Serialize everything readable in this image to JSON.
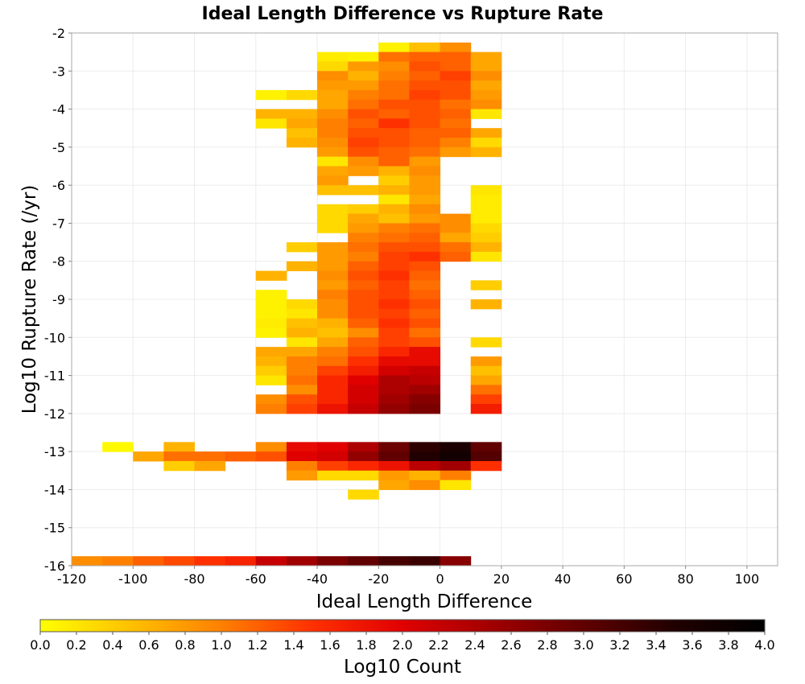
{
  "chart_data": {
    "type": "heatmap",
    "title": "Ideal Length Difference vs Rupture Rate",
    "xlabel": "Ideal Length Difference",
    "ylabel": "Log10 Rupture Rate (/yr)",
    "xlim": [
      -120,
      110
    ],
    "ylim": [
      -16,
      -2
    ],
    "x_ticks": [
      -120,
      -100,
      -80,
      -60,
      -40,
      -20,
      0,
      20,
      40,
      60,
      80,
      100
    ],
    "y_ticks": [
      -2,
      -3,
      -4,
      -5,
      -6,
      -7,
      -8,
      -9,
      -10,
      -11,
      -12,
      -13,
      -14,
      -15,
      -16
    ],
    "grid": true,
    "x_bin_width": 10,
    "y_bin_height": 0.25,
    "colorbar": {
      "label": "Log10 Count",
      "range": [
        0.0,
        4.0
      ],
      "ticks": [
        "0.0",
        "0.2",
        "0.4",
        "0.6",
        "0.8",
        "1.0",
        "1.2",
        "1.4",
        "1.6",
        "1.8",
        "2.0",
        "2.2",
        "2.4",
        "2.6",
        "2.8",
        "3.0",
        "3.2",
        "3.4",
        "3.6",
        "3.8",
        "4.0"
      ],
      "colors": [
        "#ffff00",
        "#ffc000",
        "#ff8000",
        "#ff3000",
        "#e00000",
        "#a00000",
        "#600000",
        "#200000",
        "#000000"
      ]
    },
    "cells": [
      [
        -120,
        -16,
        0.9
      ],
      [
        -110,
        -16,
        1.0
      ],
      [
        -100,
        -16,
        1.2
      ],
      [
        -90,
        -16,
        1.35
      ],
      [
        -80,
        -16,
        1.5
      ],
      [
        -70,
        -16,
        1.65
      ],
      [
        -60,
        -16,
        2.2
      ],
      [
        -50,
        -16,
        2.5
      ],
      [
        -40,
        -16,
        2.8
      ],
      [
        -30,
        -16,
        3.0
      ],
      [
        -20,
        -16,
        3.2
      ],
      [
        -10,
        -16,
        3.3
      ],
      [
        0,
        -16,
        2.7
      ],
      [
        -110,
        -13,
        0.05
      ],
      [
        -90,
        -13,
        0.6
      ],
      [
        -60,
        -13,
        0.9
      ],
      [
        -50,
        -13,
        1.9
      ],
      [
        -40,
        -13,
        2.0
      ],
      [
        -30,
        -13,
        2.4
      ],
      [
        -20,
        -13,
        2.9
      ],
      [
        -10,
        -13,
        3.4
      ],
      [
        0,
        -13,
        3.6
      ],
      [
        10,
        -13,
        3.0
      ],
      [
        -100,
        -13.25,
        0.7
      ],
      [
        -90,
        -13.25,
        1.1
      ],
      [
        -80,
        -13.25,
        1.1
      ],
      [
        -70,
        -13.25,
        1.2
      ],
      [
        -60,
        -13.25,
        1.3
      ],
      [
        -50,
        -13.25,
        2.0
      ],
      [
        -40,
        -13.25,
        2.1
      ],
      [
        -30,
        -13.25,
        2.6
      ],
      [
        -20,
        -13.25,
        3.0
      ],
      [
        -10,
        -13.25,
        3.5
      ],
      [
        0,
        -13.25,
        3.7
      ],
      [
        10,
        -13.25,
        3.1
      ],
      [
        -90,
        -13.5,
        0.4
      ],
      [
        -80,
        -13.5,
        0.7
      ],
      [
        -50,
        -13.5,
        1.0
      ],
      [
        -40,
        -13.5,
        1.4
      ],
      [
        -30,
        -13.5,
        1.6
      ],
      [
        -20,
        -13.5,
        1.8
      ],
      [
        -10,
        -13.5,
        2.3
      ],
      [
        0,
        -13.5,
        2.5
      ],
      [
        10,
        -13.5,
        1.5
      ],
      [
        -50,
        -13.75,
        0.8
      ],
      [
        -40,
        -13.75,
        0.3
      ],
      [
        -30,
        -13.75,
        0.3
      ],
      [
        -20,
        -13.75,
        0.8
      ],
      [
        -10,
        -13.75,
        0.6
      ],
      [
        0,
        -13.75,
        1.0
      ],
      [
        -20,
        -14,
        0.7
      ],
      [
        -10,
        -14,
        0.9
      ],
      [
        0,
        -14,
        0.2
      ],
      [
        -30,
        -14.25,
        0.3
      ],
      [
        -20,
        -2.5,
        0.1
      ],
      [
        -10,
        -2.5,
        0.5
      ],
      [
        0,
        -2.5,
        0.9
      ],
      [
        -40,
        -2.75,
        0.15
      ],
      [
        -30,
        -2.75,
        0.1
      ],
      [
        -20,
        -2.75,
        1.1
      ],
      [
        -10,
        -2.75,
        1.2
      ],
      [
        0,
        -2.75,
        1.2
      ],
      [
        10,
        -2.75,
        0.7
      ],
      [
        -40,
        -3,
        0.3
      ],
      [
        -30,
        -3,
        0.8
      ],
      [
        -20,
        -3,
        0.9
      ],
      [
        -10,
        -3,
        1.3
      ],
      [
        0,
        -3,
        1.2
      ],
      [
        10,
        -3,
        0.7
      ],
      [
        -40,
        -3.25,
        0.9
      ],
      [
        -30,
        -3.25,
        0.6
      ],
      [
        -20,
        -3.25,
        1.0
      ],
      [
        -10,
        -3.25,
        1.2
      ],
      [
        0,
        -3.25,
        1.4
      ],
      [
        10,
        -3.25,
        0.9
      ],
      [
        -40,
        -3.5,
        0.8
      ],
      [
        -30,
        -3.5,
        0.8
      ],
      [
        -20,
        -3.5,
        1.1
      ],
      [
        -10,
        -3.5,
        1.3
      ],
      [
        0,
        -3.5,
        1.3
      ],
      [
        10,
        -3.5,
        0.7
      ],
      [
        -60,
        -3.75,
        0.1
      ],
      [
        -50,
        -3.75,
        0.3
      ],
      [
        -40,
        -3.75,
        0.7
      ],
      [
        -30,
        -3.75,
        1.0
      ],
      [
        -20,
        -3.75,
        1.1
      ],
      [
        -10,
        -3.75,
        1.4
      ],
      [
        0,
        -3.75,
        1.3
      ],
      [
        10,
        -3.75,
        0.8
      ],
      [
        -40,
        -4,
        0.7
      ],
      [
        -30,
        -4,
        1.1
      ],
      [
        -20,
        -4,
        1.3
      ],
      [
        -10,
        -4,
        1.3
      ],
      [
        0,
        -4,
        1.1
      ],
      [
        10,
        -4,
        0.9
      ],
      [
        -60,
        -4.25,
        0.6
      ],
      [
        -50,
        -4.25,
        0.6
      ],
      [
        -40,
        -4.25,
        0.9
      ],
      [
        -30,
        -4.25,
        1.3
      ],
      [
        -20,
        -4.25,
        1.2
      ],
      [
        -10,
        -4.25,
        1.3
      ],
      [
        0,
        -4.25,
        1.2
      ],
      [
        10,
        -4.25,
        0.2
      ],
      [
        -60,
        -4.5,
        0.2
      ],
      [
        -50,
        -4.5,
        0.7
      ],
      [
        -40,
        -4.5,
        1.0
      ],
      [
        -30,
        -4.5,
        1.2
      ],
      [
        -20,
        -4.5,
        1.5
      ],
      [
        -10,
        -4.5,
        1.3
      ],
      [
        0,
        -4.5,
        1.1
      ],
      [
        -50,
        -4.75,
        0.5
      ],
      [
        -40,
        -4.75,
        1.0
      ],
      [
        -30,
        -4.75,
        1.3
      ],
      [
        -20,
        -4.75,
        1.3
      ],
      [
        -10,
        -4.75,
        1.2
      ],
      [
        0,
        -4.75,
        1.2
      ],
      [
        10,
        -4.75,
        0.7
      ],
      [
        -50,
        -5,
        0.6
      ],
      [
        -40,
        -5,
        0.9
      ],
      [
        -30,
        -5,
        1.4
      ],
      [
        -20,
        -5,
        1.3
      ],
      [
        -10,
        -5,
        1.2
      ],
      [
        0,
        -5,
        1.0
      ],
      [
        10,
        -5,
        0.3
      ],
      [
        -40,
        -5.25,
        0.8
      ],
      [
        -30,
        -5.25,
        1.3
      ],
      [
        -20,
        -5.25,
        1.2
      ],
      [
        -10,
        -5.25,
        1.1
      ],
      [
        0,
        -5.25,
        0.8
      ],
      [
        10,
        -5.25,
        0.6
      ],
      [
        -40,
        -5.5,
        0.2
      ],
      [
        -30,
        -5.5,
        0.9
      ],
      [
        -20,
        -5.5,
        1.2
      ],
      [
        -10,
        -5.5,
        0.8
      ],
      [
        -40,
        -5.75,
        0.7
      ],
      [
        -30,
        -5.75,
        0.8
      ],
      [
        -20,
        -5.75,
        0.6
      ],
      [
        -10,
        -5.75,
        0.9
      ],
      [
        -40,
        -6,
        0.8
      ],
      [
        -20,
        -6,
        0.4
      ],
      [
        -10,
        -6,
        0.8
      ],
      [
        -40,
        -6.25,
        0.5
      ],
      [
        -30,
        -6.25,
        0.5
      ],
      [
        -20,
        -6.25,
        0.6
      ],
      [
        -10,
        -6.25,
        0.8
      ],
      [
        10,
        -6.25,
        0.2
      ],
      [
        -20,
        -6.5,
        0.2
      ],
      [
        -10,
        -6.5,
        0.7
      ],
      [
        10,
        -6.5,
        0.15
      ],
      [
        -40,
        -6.75,
        0.3
      ],
      [
        -30,
        -6.75,
        0.4
      ],
      [
        -20,
        -6.75,
        0.6
      ],
      [
        -10,
        -6.75,
        0.9
      ],
      [
        10,
        -6.75,
        0.15
      ],
      [
        -40,
        -7,
        0.3
      ],
      [
        -30,
        -7,
        0.7
      ],
      [
        -20,
        -7,
        0.5
      ],
      [
        -10,
        -7,
        0.8
      ],
      [
        0,
        -7,
        0.9
      ],
      [
        10,
        -7,
        0.15
      ],
      [
        -40,
        -7.25,
        0.3
      ],
      [
        -30,
        -7.25,
        0.8
      ],
      [
        -20,
        -7.25,
        1.0
      ],
      [
        -10,
        -7.25,
        1.1
      ],
      [
        0,
        -7.25,
        0.9
      ],
      [
        10,
        -7.25,
        0.3
      ],
      [
        -30,
        -7.5,
        1.0
      ],
      [
        -20,
        -7.5,
        1.1
      ],
      [
        -10,
        -7.5,
        1.2
      ],
      [
        0,
        -7.5,
        0.7
      ],
      [
        10,
        -7.5,
        0.4
      ],
      [
        -50,
        -7.75,
        0.4
      ],
      [
        -40,
        -7.75,
        0.8
      ],
      [
        -30,
        -7.75,
        1.1
      ],
      [
        -20,
        -7.75,
        1.3
      ],
      [
        -10,
        -7.75,
        1.3
      ],
      [
        0,
        -7.75,
        1.1
      ],
      [
        10,
        -7.75,
        0.6
      ],
      [
        -40,
        -8,
        0.8
      ],
      [
        -30,
        -8,
        1.0
      ],
      [
        -20,
        -8,
        1.4
      ],
      [
        -10,
        -8,
        1.5
      ],
      [
        0,
        -8,
        1.2
      ],
      [
        10,
        -8,
        0.2
      ],
      [
        -50,
        -8.25,
        0.6
      ],
      [
        -40,
        -8.25,
        0.8
      ],
      [
        -30,
        -8.25,
        1.2
      ],
      [
        -20,
        -8.25,
        1.4
      ],
      [
        -10,
        -8.25,
        1.3
      ],
      [
        -60,
        -8.5,
        0.6
      ],
      [
        -40,
        -8.5,
        0.9
      ],
      [
        -30,
        -8.5,
        1.3
      ],
      [
        -20,
        -8.5,
        1.5
      ],
      [
        -10,
        -8.5,
        1.2
      ],
      [
        -40,
        -8.75,
        0.8
      ],
      [
        -30,
        -8.75,
        1.2
      ],
      [
        -20,
        -8.75,
        1.4
      ],
      [
        -10,
        -8.75,
        1.1
      ],
      [
        10,
        -8.75,
        0.4
      ],
      [
        -60,
        -9,
        0.1
      ],
      [
        -40,
        -9,
        1.0
      ],
      [
        -30,
        -9,
        1.3
      ],
      [
        -20,
        -9,
        1.4
      ],
      [
        -10,
        -9,
        1.2
      ],
      [
        -60,
        -9.25,
        0.1
      ],
      [
        -50,
        -9.25,
        0.3
      ],
      [
        -40,
        -9.25,
        0.9
      ],
      [
        -30,
        -9.25,
        1.3
      ],
      [
        -20,
        -9.25,
        1.5
      ],
      [
        -10,
        -9.25,
        1.3
      ],
      [
        10,
        -9.25,
        0.6
      ],
      [
        -60,
        -9.5,
        0.1
      ],
      [
        -50,
        -9.5,
        0.2
      ],
      [
        -40,
        -9.5,
        0.9
      ],
      [
        -30,
        -9.5,
        1.3
      ],
      [
        -20,
        -9.5,
        1.4
      ],
      [
        -10,
        -9.5,
        1.2
      ],
      [
        -60,
        -9.75,
        0.15
      ],
      [
        -50,
        -9.75,
        0.5
      ],
      [
        -40,
        -9.75,
        0.6
      ],
      [
        -30,
        -9.75,
        1.2
      ],
      [
        -20,
        -9.75,
        1.5
      ],
      [
        -10,
        -9.75,
        1.3
      ],
      [
        -60,
        -10,
        0.1
      ],
      [
        -50,
        -10,
        0.6
      ],
      [
        -40,
        -10,
        0.5
      ],
      [
        -30,
        -10,
        0.9
      ],
      [
        -20,
        -10,
        1.4
      ],
      [
        -10,
        -10,
        1.1
      ],
      [
        -50,
        -10.25,
        0.2
      ],
      [
        -40,
        -10.25,
        0.7
      ],
      [
        -30,
        -10.25,
        1.2
      ],
      [
        -20,
        -10.25,
        1.4
      ],
      [
        -10,
        -10.25,
        1.3
      ],
      [
        10,
        -10.25,
        0.3
      ],
      [
        -60,
        -10.5,
        0.7
      ],
      [
        -50,
        -10.5,
        0.7
      ],
      [
        -40,
        -10.5,
        1.0
      ],
      [
        -30,
        -10.5,
        1.3
      ],
      [
        -20,
        -10.5,
        1.6
      ],
      [
        -10,
        -10.5,
        1.9
      ],
      [
        -60,
        -10.75,
        0.6
      ],
      [
        -50,
        -10.75,
        1.0
      ],
      [
        -40,
        -10.75,
        1.1
      ],
      [
        -30,
        -10.75,
        1.5
      ],
      [
        -20,
        -10.75,
        1.9
      ],
      [
        -10,
        -10.75,
        1.9
      ],
      [
        10,
        -10.75,
        0.8
      ],
      [
        -60,
        -11,
        0.4
      ],
      [
        -50,
        -11,
        1.0
      ],
      [
        -40,
        -11,
        1.4
      ],
      [
        -30,
        -11,
        1.7
      ],
      [
        -20,
        -11,
        2.1
      ],
      [
        -10,
        -11,
        2.2
      ],
      [
        10,
        -11,
        0.5
      ],
      [
        -60,
        -11.25,
        0.2
      ],
      [
        -50,
        -11.25,
        1.1
      ],
      [
        -40,
        -11.25,
        1.6
      ],
      [
        -30,
        -11.25,
        2.0
      ],
      [
        -20,
        -11.25,
        2.4
      ],
      [
        -10,
        -11.25,
        2.3
      ],
      [
        10,
        -11.25,
        0.7
      ],
      [
        -50,
        -11.5,
        0.9
      ],
      [
        -40,
        -11.5,
        1.6
      ],
      [
        -30,
        -11.5,
        2.1
      ],
      [
        -20,
        -11.5,
        2.4
      ],
      [
        -10,
        -11.5,
        2.5
      ],
      [
        10,
        -11.5,
        1.1
      ],
      [
        -60,
        -11.75,
        0.9
      ],
      [
        -50,
        -11.75,
        1.3
      ],
      [
        -40,
        -11.75,
        1.6
      ],
      [
        -30,
        -11.75,
        2.1
      ],
      [
        -20,
        -11.75,
        2.5
      ],
      [
        -10,
        -11.75,
        2.7
      ],
      [
        10,
        -11.75,
        1.4
      ],
      [
        -60,
        -12,
        1.0
      ],
      [
        -50,
        -12,
        1.4
      ],
      [
        -40,
        -12,
        1.8
      ],
      [
        -30,
        -12,
        2.2
      ],
      [
        -20,
        -12,
        2.6
      ],
      [
        -10,
        -12,
        2.8
      ],
      [
        10,
        -12,
        1.7
      ]
    ]
  }
}
